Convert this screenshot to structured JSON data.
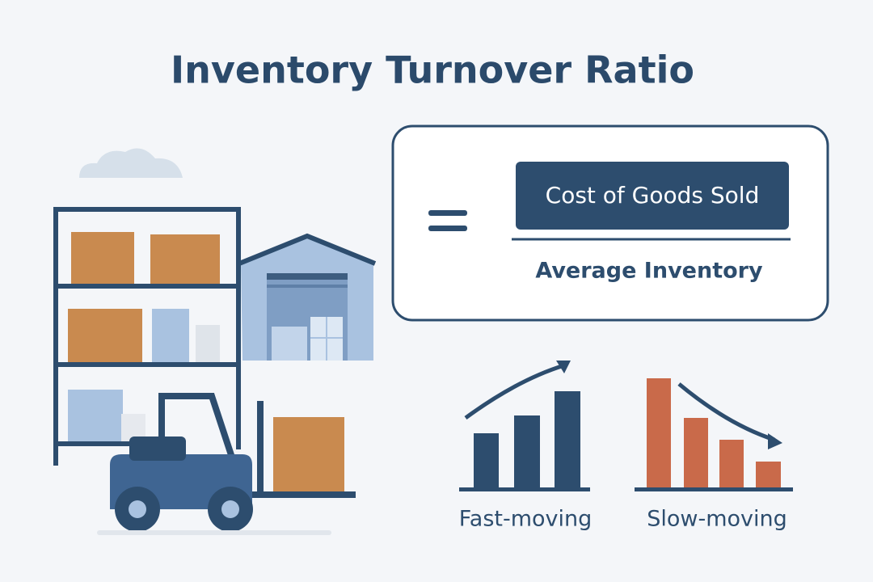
{
  "title": "Inventory Turnover Ratio",
  "formula": {
    "numerator": "Cost of Goods Sold",
    "denominator": "Average Inventory"
  },
  "examples": [
    {
      "label": "Fast-moving"
    },
    {
      "label": "Slow-moving"
    }
  ]
}
